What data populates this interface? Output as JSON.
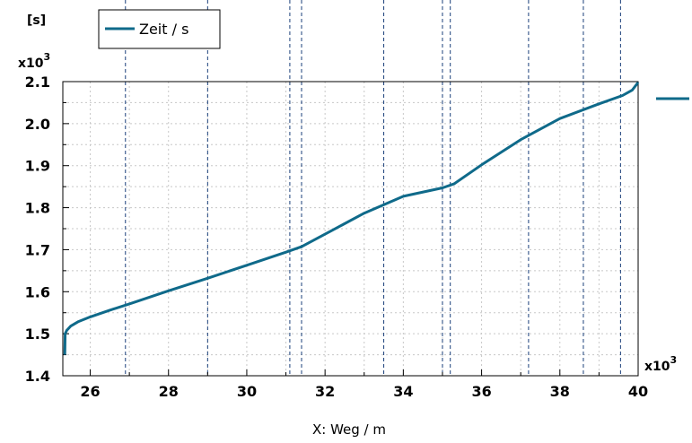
{
  "colors": {
    "series": "#0f6a8a",
    "marker_lines": "#1a3f7a",
    "grid": "#c8c8c8",
    "axis": "#000000"
  },
  "chart_data": {
    "type": "line",
    "xlabel": "X: Weg / m",
    "ylabel_unit": "[s]",
    "x_multiplier": "x10",
    "x_multiplier_exp": "3",
    "y_multiplier": "x10",
    "y_multiplier_exp": "3",
    "xlim": [
      25.3,
      40
    ],
    "ylim": [
      1.4,
      2.1
    ],
    "x_ticks": [
      "26",
      "28",
      "30",
      "32",
      "34",
      "36",
      "38",
      "40"
    ],
    "y_ticks": [
      "1.4",
      "1.5",
      "1.6",
      "1.7",
      "1.8",
      "1.9",
      "2.0",
      "2.1"
    ],
    "grid": true,
    "legend_position": "top-left",
    "vertical_markers": [
      26.9,
      29.0,
      31.1,
      31.4,
      33.5,
      35.0,
      35.2,
      37.2,
      38.6,
      39.55
    ],
    "series": [
      {
        "name": "Zeit / s",
        "x": [
          25.35,
          25.36,
          25.4,
          25.5,
          25.7,
          26.0,
          26.5,
          27.0,
          28.0,
          29.0,
          30.0,
          31.0,
          31.4,
          32.0,
          33.0,
          34.0,
          35.0,
          35.3,
          36.0,
          37.0,
          38.0,
          39.0,
          39.6,
          39.85,
          40.0
        ],
        "y": [
          1.45,
          1.5,
          1.508,
          1.518,
          1.529,
          1.54,
          1.556,
          1.571,
          1.602,
          1.632,
          1.663,
          1.694,
          1.707,
          1.737,
          1.787,
          1.827,
          1.847,
          1.857,
          1.902,
          1.962,
          2.012,
          2.047,
          2.067,
          2.08,
          2.098
        ]
      }
    ]
  }
}
